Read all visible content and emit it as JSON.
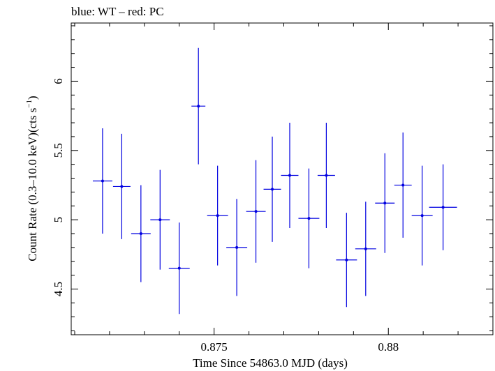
{
  "chart_data": {
    "type": "scatter",
    "title": "blue: WT – red: PC",
    "xlabel": "Time Since 54863.0 MJD (days)",
    "ylabel_main": "Count Rate (0.3–10.0 keV)(cts s",
    "ylabel_sup": "−1",
    "ylabel_tail": ")",
    "xlim": [
      0.8709,
      0.883
    ],
    "ylim": [
      4.17,
      6.42
    ],
    "xticks": [
      0.875,
      0.88
    ],
    "xtick_labels": [
      "0.875",
      "0.88"
    ],
    "yticks": [
      4.5,
      5,
      5.5,
      6
    ],
    "ytick_labels": [
      "4.5",
      "5",
      "5.5",
      "6"
    ],
    "grid": false,
    "series": [
      {
        "color": "#0000e0",
        "points": [
          {
            "x": 0.8718,
            "y": 5.28,
            "xerr": 0.00028,
            "yerr": 0.38
          },
          {
            "x": 0.87235,
            "y": 5.24,
            "xerr": 0.00025,
            "yerr": 0.38
          },
          {
            "x": 0.8729,
            "y": 4.9,
            "xerr": 0.00028,
            "yerr": 0.35
          },
          {
            "x": 0.87345,
            "y": 5.0,
            "xerr": 0.00028,
            "yerr": 0.36
          },
          {
            "x": 0.874,
            "y": 4.65,
            "xerr": 0.0003,
            "yerr": 0.33
          },
          {
            "x": 0.87455,
            "y": 5.82,
            "xerr": 0.0002,
            "yerr": 0.42
          },
          {
            "x": 0.8751,
            "y": 5.03,
            "xerr": 0.0003,
            "yerr": 0.36
          },
          {
            "x": 0.87565,
            "y": 4.8,
            "xerr": 0.0003,
            "yerr": 0.35
          },
          {
            "x": 0.8762,
            "y": 5.06,
            "xerr": 0.00028,
            "yerr": 0.37
          },
          {
            "x": 0.87667,
            "y": 5.22,
            "xerr": 0.00025,
            "yerr": 0.38
          },
          {
            "x": 0.87717,
            "y": 5.32,
            "xerr": 0.00025,
            "yerr": 0.38
          },
          {
            "x": 0.87772,
            "y": 5.01,
            "xerr": 0.0003,
            "yerr": 0.36
          },
          {
            "x": 0.87822,
            "y": 5.32,
            "xerr": 0.00025,
            "yerr": 0.38
          },
          {
            "x": 0.8788,
            "y": 4.71,
            "xerr": 0.0003,
            "yerr": 0.34
          },
          {
            "x": 0.87935,
            "y": 4.79,
            "xerr": 0.0003,
            "yerr": 0.34
          },
          {
            "x": 0.8799,
            "y": 5.12,
            "xerr": 0.00028,
            "yerr": 0.36
          },
          {
            "x": 0.88042,
            "y": 5.25,
            "xerr": 0.00025,
            "yerr": 0.38
          },
          {
            "x": 0.88097,
            "y": 5.03,
            "xerr": 0.0003,
            "yerr": 0.36
          },
          {
            "x": 0.88157,
            "y": 5.09,
            "xerr": 0.0004,
            "yerr": 0.31
          }
        ]
      }
    ]
  }
}
